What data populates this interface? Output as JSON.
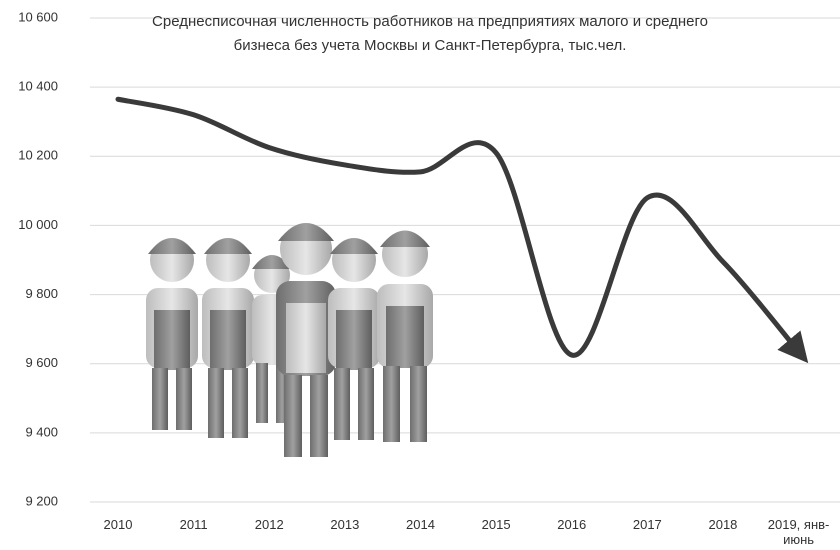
{
  "chart_data": {
    "type": "line",
    "title": "Среднесписочная численность работников на предприятиях малого и среднего\nбизнеса без учета Москвы и Санкт-Петербурга, тыс.чел.",
    "categories": [
      "2010",
      "2011",
      "2012",
      "2013",
      "2014",
      "2015",
      "2016",
      "2017",
      "2018",
      "2019, янв-июнь"
    ],
    "values": [
      10365,
      10320,
      10225,
      10175,
      10155,
      10210,
      9625,
      10080,
      9895,
      9635
    ],
    "color": "#3a3a3a",
    "ylim": [
      9200,
      10600
    ],
    "yticks": [
      {
        "value": 9200,
        "label": "9 200"
      },
      {
        "value": 9400,
        "label": "9 400"
      },
      {
        "value": 9600,
        "label": "9 600"
      },
      {
        "value": 9800,
        "label": "9 800"
      },
      {
        "value": 10000,
        "label": "10 000"
      },
      {
        "value": 10200,
        "label": "10 200"
      },
      {
        "value": 10400,
        "label": "10 400"
      },
      {
        "value": 10600,
        "label": "10 600"
      }
    ],
    "grid": true
  }
}
